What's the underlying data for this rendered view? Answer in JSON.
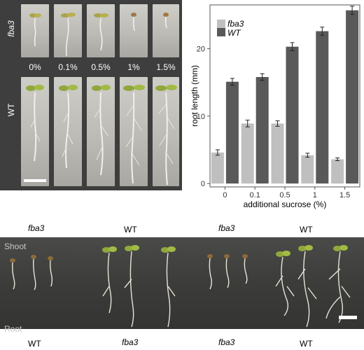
{
  "panel_a": {
    "row_label_top": "fba3",
    "row_label_bottom": "WT",
    "concentrations": [
      "0%",
      "0.1%",
      "0.5%",
      "1%",
      "1.5%"
    ]
  },
  "chart_data": {
    "type": "bar",
    "categories": [
      "0",
      "0.1",
      "0.5",
      "1",
      "1.5"
    ],
    "series": [
      {
        "name": "fba3",
        "values": [
          4.6,
          8.9,
          8.9,
          4.2,
          3.6
        ],
        "errors": [
          0.4,
          0.5,
          0.4,
          0.3,
          0.2
        ],
        "color": "#bfbfbf"
      },
      {
        "name": "WT",
        "values": [
          15.1,
          15.8,
          20.3,
          22.6,
          25.7
        ],
        "errors": [
          0.5,
          0.5,
          0.6,
          0.6,
          0.6
        ],
        "color": "#595959"
      }
    ],
    "xlabel": "additional sucrose (%)",
    "ylabel": "root length (mm)",
    "ylim": [
      -0.5,
      26.5
    ],
    "yticks": [
      0,
      10,
      20
    ],
    "legend": "top-left"
  },
  "panel_c": {
    "top_labels": [
      "fba3",
      "WT",
      "fba3",
      "WT"
    ],
    "shoot_label": "Shoot",
    "root_label": "Root",
    "bottom_labels": [
      "WT",
      "fba3",
      "fba3",
      "WT"
    ]
  }
}
